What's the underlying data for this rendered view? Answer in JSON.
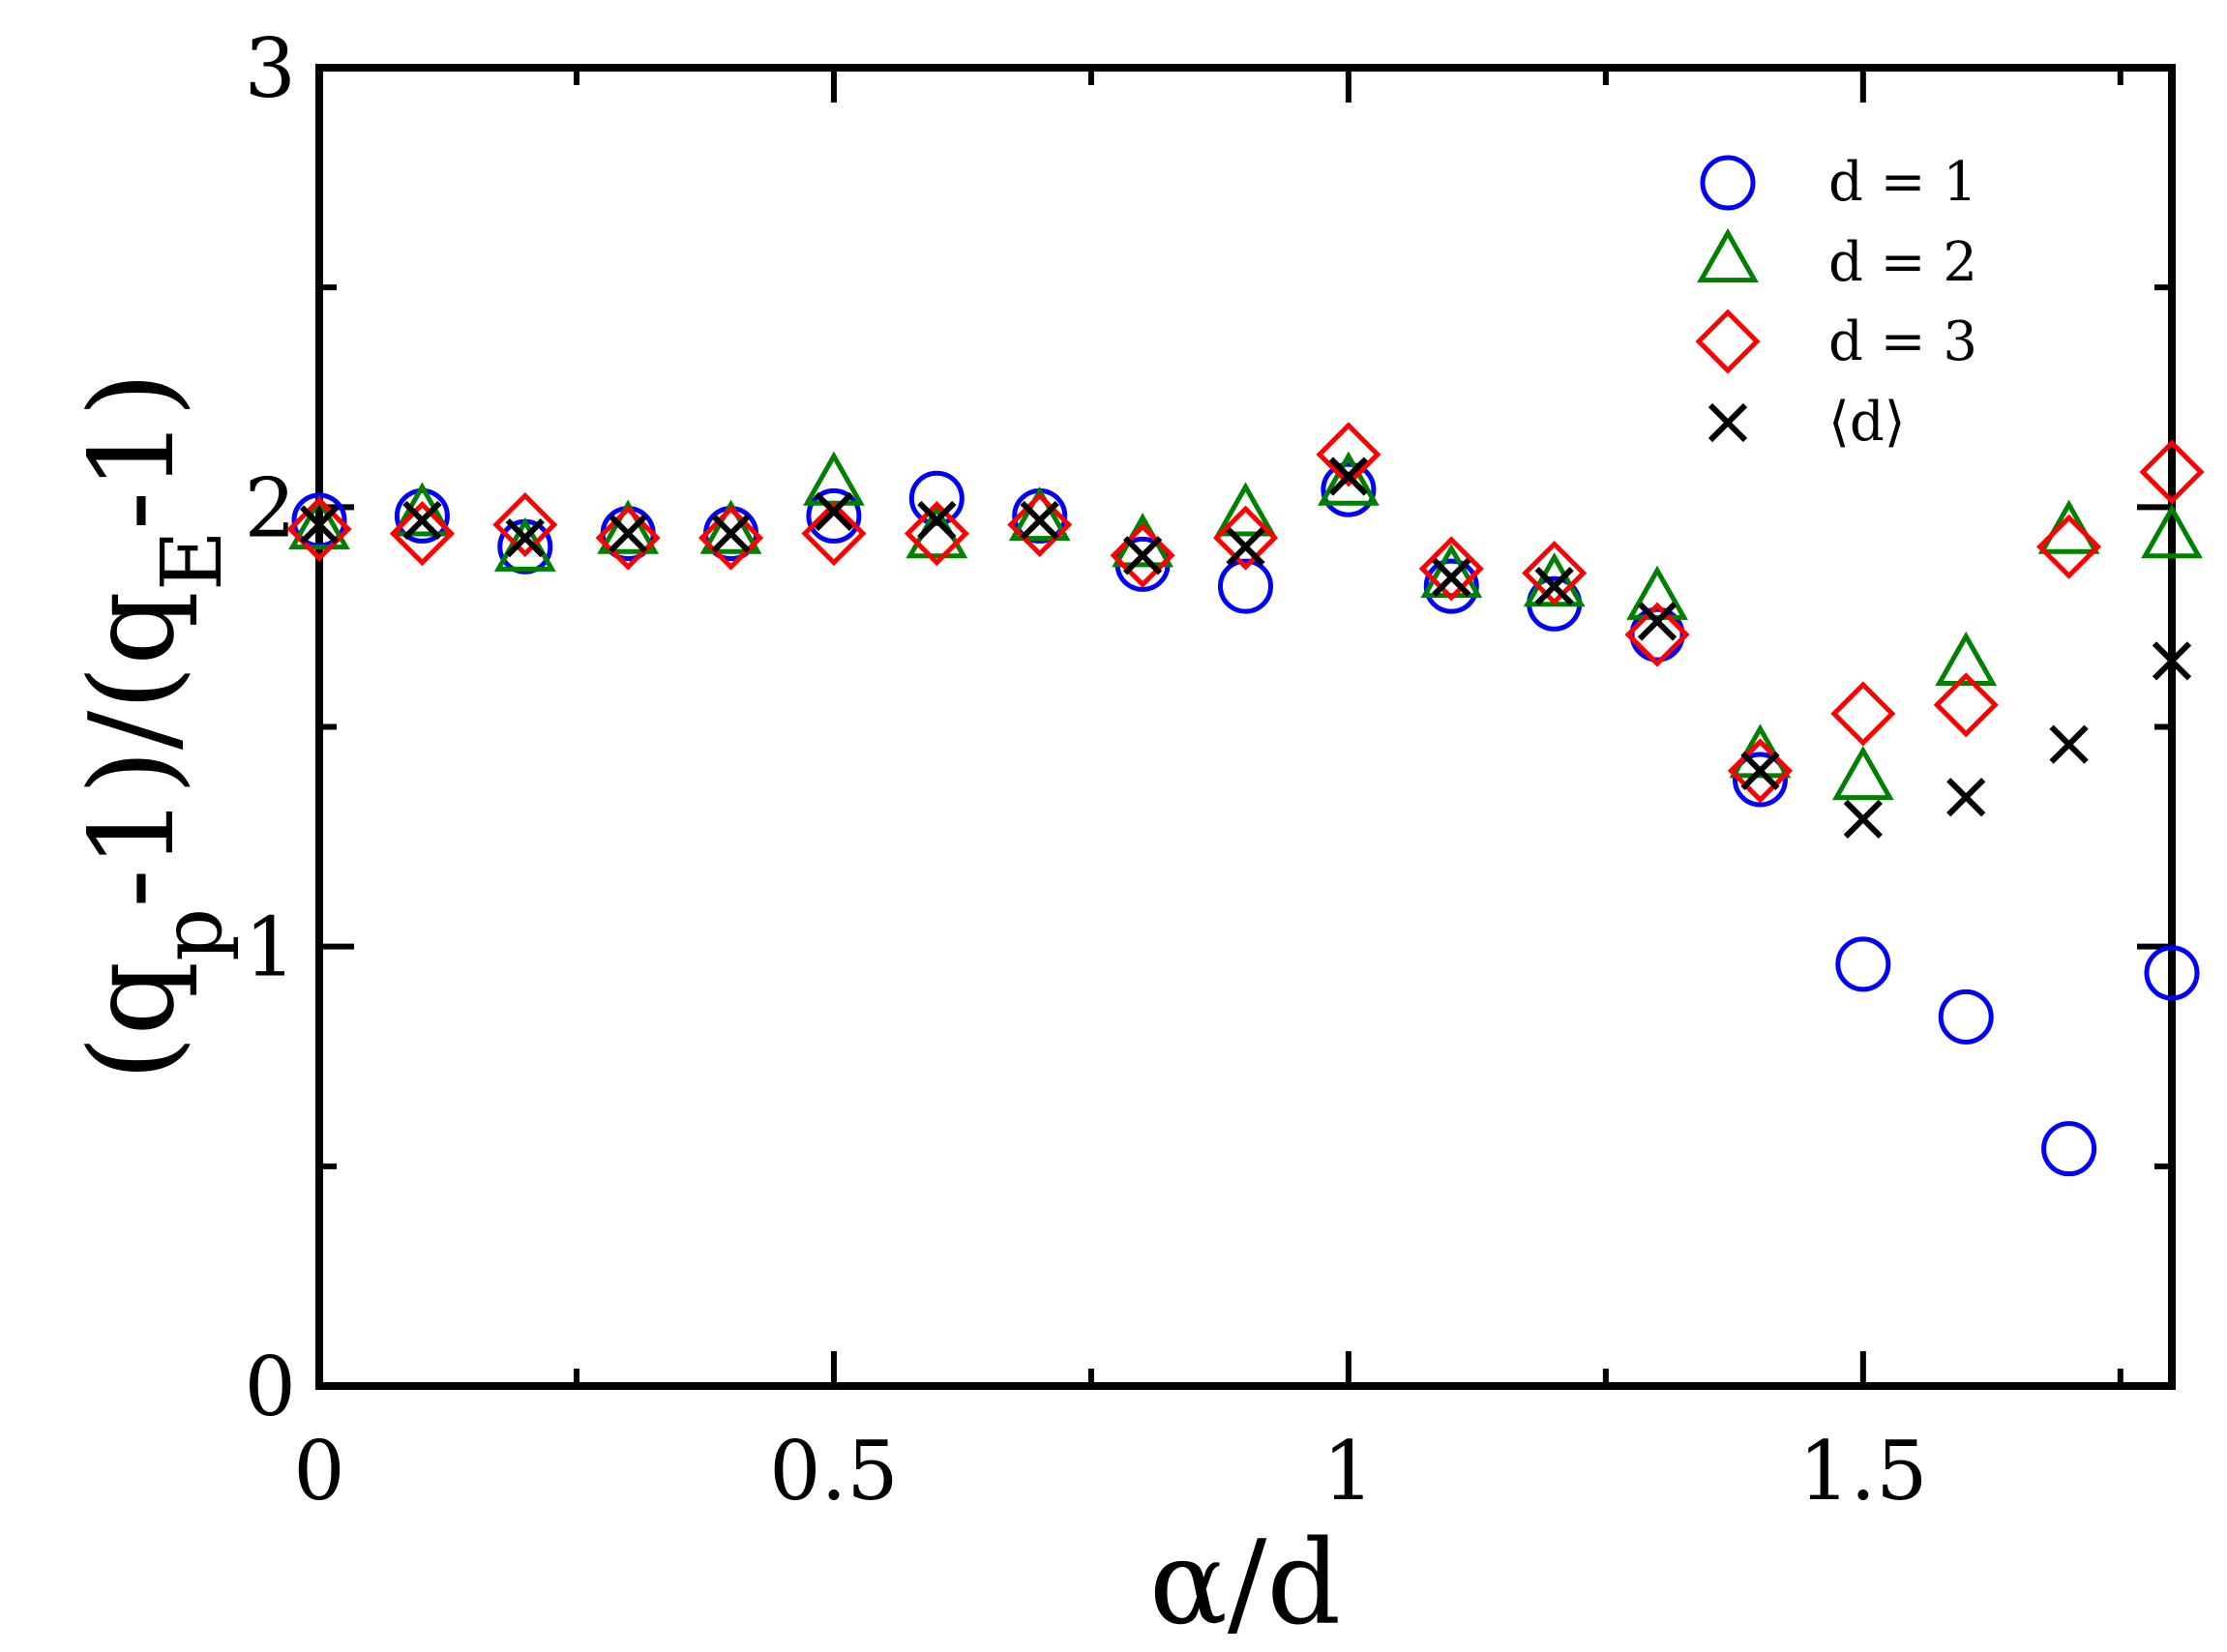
{
  "chart_data": {
    "type": "scatter",
    "title": "",
    "xlabel": "α/d",
    "ylabel_parts": {
      "open": "(q",
      "sub1": "p",
      "mid": "-1)/(q",
      "sub2": "E",
      "close": "-1)"
    },
    "xlim": [
      0,
      1.8
    ],
    "ylim": [
      0,
      3
    ],
    "x_ticks": [
      {
        "value": 0,
        "label": "0"
      },
      {
        "value": 0.5,
        "label": "0.5"
      },
      {
        "value": 1,
        "label": "1"
      },
      {
        "value": 1.5,
        "label": "1.5"
      }
    ],
    "y_ticks": [
      {
        "value": 0,
        "label": "0"
      },
      {
        "value": 1,
        "label": "1"
      },
      {
        "value": 2,
        "label": "2"
      },
      {
        "value": 3,
        "label": "3"
      }
    ],
    "x_minor_step": 0.25,
    "y_minor_step": 0.5,
    "legend_position": "top-right",
    "series": [
      {
        "name": "d = 1",
        "marker": "circle",
        "color": "#0000ff",
        "x": [
          0,
          0.1,
          0.2,
          0.3,
          0.4,
          0.5,
          0.6,
          0.7,
          0.8,
          0.9,
          1.0,
          1.1,
          1.2,
          1.3,
          1.4,
          1.5,
          1.6,
          1.7,
          1.8
        ],
        "y": [
          1.97,
          1.98,
          1.91,
          1.94,
          1.94,
          1.98,
          2.02,
          1.98,
          1.87,
          1.82,
          2.04,
          1.82,
          1.78,
          1.71,
          1.38,
          0.96,
          0.84,
          0.54,
          0.94
        ]
      },
      {
        "name": "d = 2",
        "marker": "triangle",
        "color": "#008000",
        "x": [
          0,
          0.1,
          0.2,
          0.3,
          0.4,
          0.5,
          0.6,
          0.7,
          0.8,
          0.9,
          1.0,
          1.1,
          1.2,
          1.3,
          1.4,
          1.5,
          1.6,
          1.7,
          1.8
        ],
        "y": [
          1.95,
          1.98,
          1.9,
          1.94,
          1.94,
          2.05,
          1.93,
          1.97,
          1.91,
          1.98,
          2.05,
          1.84,
          1.82,
          1.79,
          1.43,
          1.38,
          1.64,
          1.94,
          1.93
        ]
      },
      {
        "name": "d = 3",
        "marker": "diamond",
        "color": "#ff0000",
        "x": [
          0,
          0.1,
          0.2,
          0.3,
          0.4,
          0.5,
          0.6,
          0.7,
          0.8,
          0.9,
          1.0,
          1.1,
          1.2,
          1.3,
          1.4,
          1.5,
          1.6,
          1.7,
          1.8
        ],
        "y": [
          1.95,
          1.94,
          1.96,
          1.93,
          1.93,
          1.94,
          1.94,
          1.96,
          1.89,
          1.93,
          2.12,
          1.86,
          1.85,
          1.71,
          1.4,
          1.53,
          1.55,
          1.91,
          2.08
        ]
      },
      {
        "name": "⟨d⟩",
        "marker": "cross",
        "color": "#000000",
        "x": [
          0,
          0.1,
          0.2,
          0.3,
          0.4,
          0.5,
          0.6,
          0.7,
          0.8,
          0.9,
          1.0,
          1.1,
          1.2,
          1.3,
          1.4,
          1.5,
          1.6,
          1.7,
          1.8
        ],
        "y": [
          1.96,
          1.97,
          1.93,
          1.94,
          1.94,
          1.99,
          1.97,
          1.97,
          1.89,
          1.91,
          2.07,
          1.84,
          1.82,
          1.74,
          1.4,
          1.29,
          1.34,
          1.46,
          1.65
        ]
      }
    ]
  }
}
